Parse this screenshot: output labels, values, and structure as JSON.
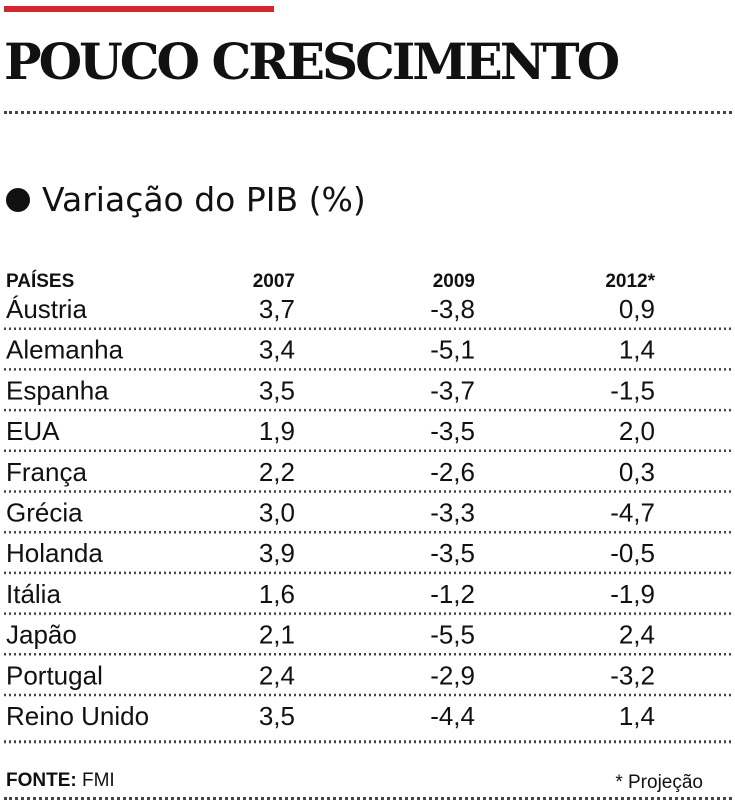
{
  "title": "POUCO CRESCIMENTO",
  "subtitle": "Variação do PIB (%)",
  "chart_data": {
    "type": "table",
    "columns": [
      "PAÍSES",
      "2007",
      "2009",
      "2012*"
    ],
    "rows": [
      {
        "country": "Áustria",
        "values": [
          "3,7",
          "-3,8",
          "0,9"
        ]
      },
      {
        "country": "Alemanha",
        "values": [
          "3,4",
          "-5,1",
          "1,4"
        ]
      },
      {
        "country": "Espanha",
        "values": [
          "3,5",
          "-3,7",
          "-1,5"
        ]
      },
      {
        "country": "EUA",
        "values": [
          "1,9",
          "-3,5",
          "2,0"
        ]
      },
      {
        "country": "França",
        "values": [
          "2,2",
          "-2,6",
          "0,3"
        ]
      },
      {
        "country": "Grécia",
        "values": [
          "3,0",
          "-3,3",
          "-4,7"
        ]
      },
      {
        "country": "Holanda",
        "values": [
          "3,9",
          "-3,5",
          "-0,5"
        ]
      },
      {
        "country": "Itália",
        "values": [
          "1,6",
          "-1,2",
          "-1,9"
        ]
      },
      {
        "country": "Japão",
        "values": [
          "2,1",
          "-5,5",
          "2,4"
        ]
      },
      {
        "country": "Portugal",
        "values": [
          "2,4",
          "-2,9",
          "-3,2"
        ]
      },
      {
        "country": "Reino Unido",
        "values": [
          "3,5",
          "-4,4",
          "1,4"
        ]
      }
    ]
  },
  "footer": {
    "source_label": "FONTE:",
    "source_value": "FMI",
    "note": "* Projeção"
  },
  "colors": {
    "accent": "#d4262c",
    "text": "#111111"
  }
}
